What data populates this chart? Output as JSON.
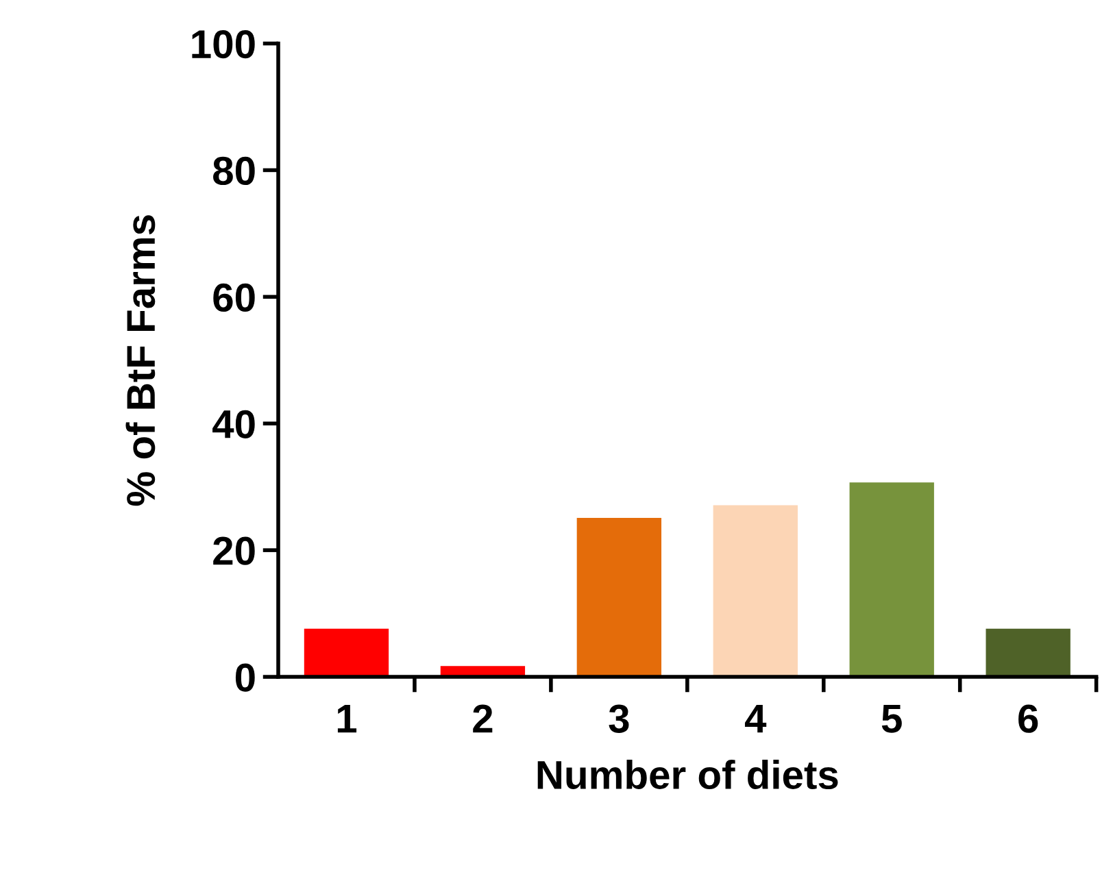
{
  "chart_data": {
    "type": "bar",
    "xlabel": "Number of diets",
    "ylabel": "% of BtF Farms",
    "categories": [
      "1",
      "2",
      "3",
      "4",
      "5",
      "6"
    ],
    "values": [
      7.6,
      1.7,
      25.1,
      27.1,
      30.7,
      7.6
    ],
    "colors": [
      "#ff0000",
      "#ff0000",
      "#e46c0a",
      "#fcd5b5",
      "#77933c",
      "#4f6228"
    ],
    "ylim": [
      0,
      100
    ],
    "yticks": [
      0,
      20,
      40,
      60,
      80,
      100
    ],
    "grid": false,
    "legend": false
  }
}
